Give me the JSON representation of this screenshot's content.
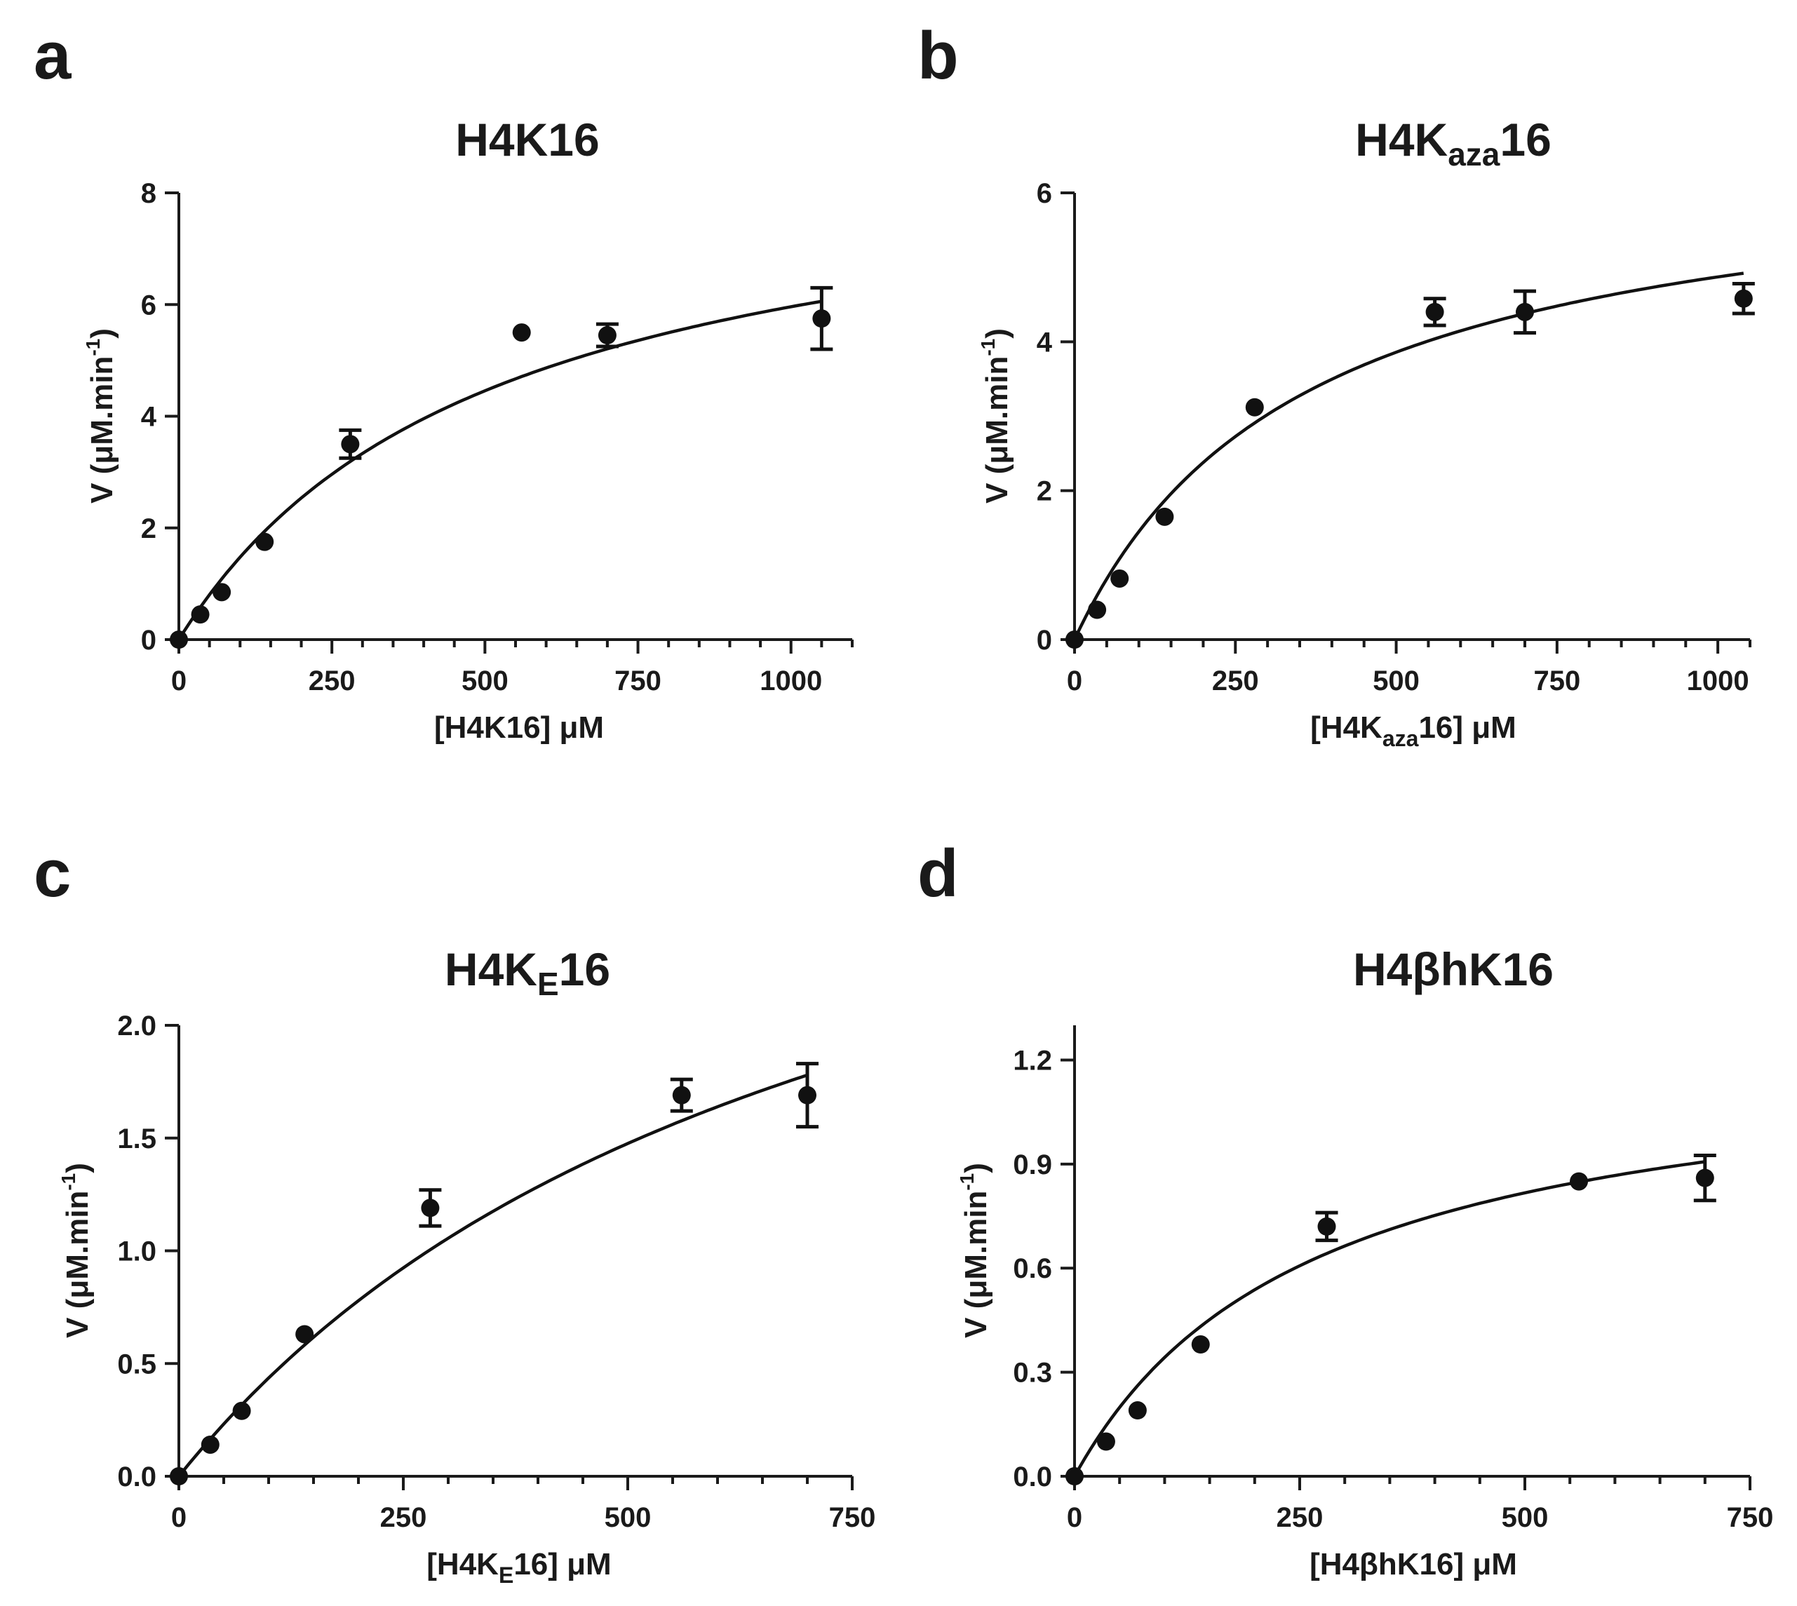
{
  "chart_data": [
    {
      "type": "scatter",
      "panel": "a",
      "title": "H4K16",
      "xlabel": "[H4K16] μM",
      "ylabel": "V (μM.min",
      "ylabel_sup": "-1",
      "ylabel_close": ")",
      "xlim": [
        0,
        1100
      ],
      "ylim": [
        0,
        8
      ],
      "x_ticks": [
        0,
        250,
        500,
        750,
        1000
      ],
      "x_tick_labels": [
        "0",
        "250",
        "500",
        "750",
        "1000"
      ],
      "y_ticks": [
        0,
        2,
        4,
        6,
        8
      ],
      "y_tick_labels": [
        "0",
        "2",
        "4",
        "6",
        "8"
      ],
      "x_minor_step": 50,
      "points": [
        {
          "x": 0,
          "y": 0
        },
        {
          "x": 35,
          "y": 0.45
        },
        {
          "x": 70,
          "y": 0.85
        },
        {
          "x": 140,
          "y": 1.75
        },
        {
          "x": 280,
          "y": 3.5,
          "err": 0.25
        },
        {
          "x": 560,
          "y": 5.5
        },
        {
          "x": 700,
          "y": 5.45,
          "err": 0.2
        },
        {
          "x": 1050,
          "y": 5.75,
          "err": 0.55
        }
      ],
      "fit": {
        "model": "michaelis-menten",
        "vmax": 9.0,
        "km": 510
      }
    },
    {
      "type": "scatter",
      "panel": "b",
      "title": "H4K",
      "title_sub": "aza",
      "title_end": "16",
      "xlabel": "[H4K",
      "xlabel_sub": "aza",
      "xlabel_end": "16] μM",
      "ylabel": "V (μM.min",
      "ylabel_sup": "-1",
      "ylabel_close": ")",
      "xlim": [
        0,
        1050
      ],
      "ylim": [
        0,
        6
      ],
      "x_ticks": [
        0,
        250,
        500,
        750,
        1000
      ],
      "x_tick_labels": [
        "0",
        "250",
        "500",
        "750",
        "1000"
      ],
      "y_ticks": [
        0,
        2,
        4,
        6
      ],
      "y_tick_labels": [
        "0",
        "2",
        "4",
        "6"
      ],
      "x_minor_step": 50,
      "points": [
        {
          "x": 0,
          "y": 0
        },
        {
          "x": 35,
          "y": 0.4
        },
        {
          "x": 70,
          "y": 0.82
        },
        {
          "x": 140,
          "y": 1.65
        },
        {
          "x": 280,
          "y": 3.12
        },
        {
          "x": 560,
          "y": 4.4,
          "err": 0.18
        },
        {
          "x": 700,
          "y": 4.4,
          "err": 0.28
        },
        {
          "x": 1040,
          "y": 4.58,
          "err": 0.2
        }
      ],
      "fit": {
        "model": "michaelis-menten",
        "vmax": 6.6,
        "km": 355
      }
    },
    {
      "type": "scatter",
      "panel": "c",
      "title": "H4K",
      "title_sub": "E",
      "title_end": "16",
      "xlabel": "[H4K",
      "xlabel_sub": "E",
      "xlabel_end": "16] μM",
      "ylabel": "V (μM.min",
      "ylabel_sup": "-1",
      "ylabel_close": ")",
      "xlim": [
        0,
        750
      ],
      "ylim": [
        0,
        2.0
      ],
      "x_ticks": [
        0,
        250,
        500,
        750
      ],
      "x_tick_labels": [
        "0",
        "250",
        "500",
        "750"
      ],
      "y_ticks": [
        0,
        0.5,
        1.0,
        1.5,
        2.0
      ],
      "y_tick_labels": [
        "0.0",
        "0.5",
        "1.0",
        "1.5",
        "2.0"
      ],
      "x_minor_step": 50,
      "points": [
        {
          "x": 0,
          "y": 0
        },
        {
          "x": 35,
          "y": 0.14
        },
        {
          "x": 70,
          "y": 0.29
        },
        {
          "x": 140,
          "y": 0.63
        },
        {
          "x": 280,
          "y": 1.19,
          "err": 0.08
        },
        {
          "x": 560,
          "y": 1.69,
          "err": 0.07
        },
        {
          "x": 700,
          "y": 1.69,
          "err": 0.14
        }
      ],
      "fit": {
        "model": "michaelis-menten",
        "vmax": 3.66,
        "km": 740
      }
    },
    {
      "type": "scatter",
      "panel": "d",
      "title": "H4βhK16",
      "xlabel": "[H4βhK16] μM",
      "ylabel": "V (μM.min",
      "ylabel_sup": "-1",
      "ylabel_close": ")",
      "xlim": [
        0,
        750
      ],
      "ylim": [
        0,
        1.3
      ],
      "x_ticks": [
        0,
        250,
        500,
        750
      ],
      "x_tick_labels": [
        "0",
        "250",
        "500",
        "750"
      ],
      "y_ticks": [
        0,
        0.3,
        0.6,
        0.9,
        1.2
      ],
      "y_tick_labels": [
        "0.0",
        "0.3",
        "0.6",
        "0.9",
        "1.2"
      ],
      "x_minor_step": 50,
      "points": [
        {
          "x": 0,
          "y": 0
        },
        {
          "x": 35,
          "y": 0.1
        },
        {
          "x": 70,
          "y": 0.19
        },
        {
          "x": 140,
          "y": 0.38
        },
        {
          "x": 280,
          "y": 0.72,
          "err": 0.04
        },
        {
          "x": 560,
          "y": 0.85
        },
        {
          "x": 700,
          "y": 0.86,
          "err": 0.065
        }
      ],
      "fit": {
        "model": "michaelis-menten",
        "vmax": 1.25,
        "km": 265
      }
    }
  ]
}
